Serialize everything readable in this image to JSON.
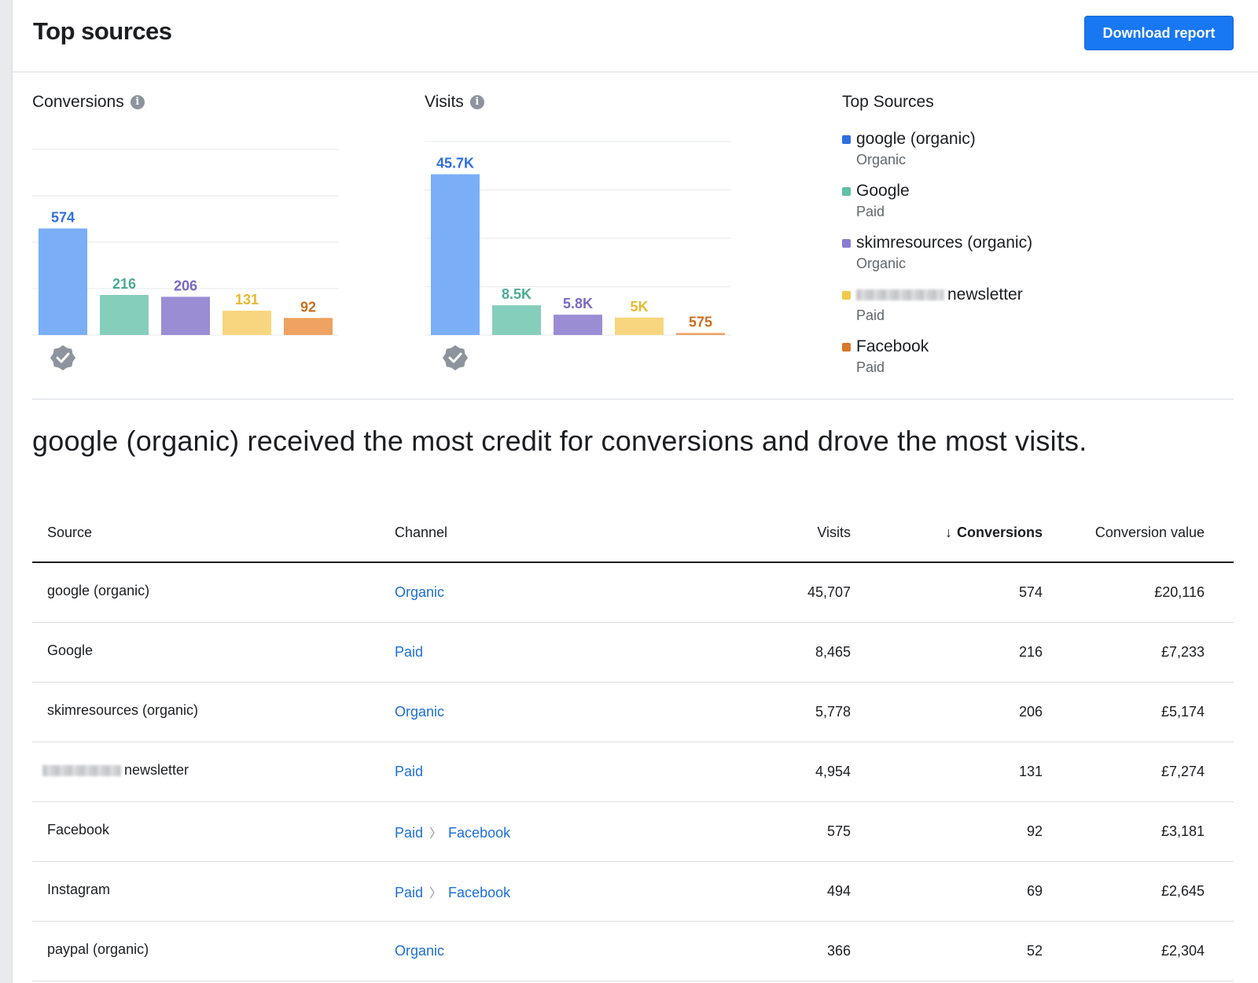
{
  "header": {
    "title": "Top sources",
    "download_label": "Download report"
  },
  "colors": {
    "google_organic": "#7aaef7",
    "google_paid": "#86cebc",
    "skimresources": "#9b8dd3",
    "newsletter": "#f7d67f",
    "facebook": "#efa261",
    "label_google_organic": "#2f6fe0",
    "label_google_paid": "#4bac93",
    "label_skimresources": "#7a68c2",
    "label_newsletter": "#e8b92c",
    "label_facebook": "#cc6d1c",
    "link": "#1b6fd9"
  },
  "charts": [
    {
      "title": "Conversions",
      "info_icon": "info-icon",
      "badge_icon": "verified-check-icon"
    },
    {
      "title": "Visits",
      "info_icon": "info-icon",
      "badge_icon": "verified-check-icon"
    }
  ],
  "chart_data": [
    {
      "type": "bar",
      "title": "Conversions",
      "categories": [
        "google (organic)",
        "Google",
        "skimresources (organic)",
        "newsletter",
        "Facebook"
      ],
      "values": [
        574,
        216,
        206,
        131,
        92
      ],
      "value_labels": [
        "574",
        "216",
        "206",
        "131",
        "92"
      ],
      "ylim": [
        0,
        1000
      ],
      "grid": true
    },
    {
      "type": "bar",
      "title": "Visits",
      "categories": [
        "google (organic)",
        "Google",
        "skimresources (organic)",
        "newsletter",
        "Facebook"
      ],
      "values": [
        45707,
        8465,
        5778,
        4954,
        575
      ],
      "value_labels": [
        "45.7K",
        "8.5K",
        "5.8K",
        "5K",
        "575"
      ],
      "ylim": [
        0,
        55000
      ],
      "grid": true
    }
  ],
  "legend": {
    "title": "Top Sources",
    "items": [
      {
        "name": "google (organic)",
        "channel": "Organic",
        "color": "#2f6fe0"
      },
      {
        "name": "Google",
        "channel": "Paid",
        "color": "#5fbfa7"
      },
      {
        "name": "skimresources (organic)",
        "channel": "Organic",
        "color": "#8a7bcf"
      },
      {
        "name": "newsletter",
        "channel": "Paid",
        "color": "#f2c94c",
        "redacted": true
      },
      {
        "name": "Facebook",
        "channel": "Paid",
        "color": "#d9792a"
      }
    ]
  },
  "summary": "google (organic) received the most credit for conversions and drove the most visits.",
  "table": {
    "headers": {
      "source": "Source",
      "channel": "Channel",
      "visits": "Visits",
      "conversions": "Conversions",
      "value": "Conversion value"
    },
    "sort_icon": "arrow-down-icon",
    "rows": [
      {
        "source": "google (organic)",
        "channel": [
          "Organic"
        ],
        "visits": "45,707",
        "conversions": "574",
        "value": "£20,116"
      },
      {
        "source": "Google",
        "channel": [
          "Paid"
        ],
        "visits": "8,465",
        "conversions": "216",
        "value": "£7,233"
      },
      {
        "source": "skimresources (organic)",
        "channel": [
          "Organic"
        ],
        "visits": "5,778",
        "conversions": "206",
        "value": "£5,174"
      },
      {
        "source": "newsletter",
        "redacted": true,
        "channel": [
          "Paid"
        ],
        "visits": "4,954",
        "conversions": "131",
        "value": "£7,274"
      },
      {
        "source": "Facebook",
        "channel": [
          "Paid",
          "Facebook"
        ],
        "visits": "575",
        "conversions": "92",
        "value": "£3,181"
      },
      {
        "source": "Instagram",
        "channel": [
          "Paid",
          "Facebook"
        ],
        "visits": "494",
        "conversions": "69",
        "value": "£2,645"
      },
      {
        "source": "paypal (organic)",
        "channel": [
          "Organic"
        ],
        "visits": "366",
        "conversions": "52",
        "value": "£2,304"
      }
    ]
  }
}
